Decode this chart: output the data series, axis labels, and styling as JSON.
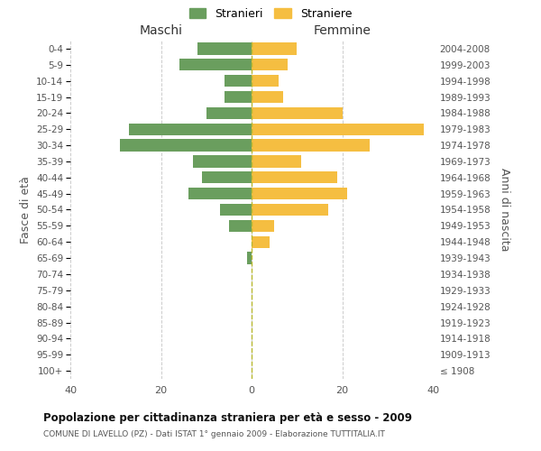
{
  "age_groups": [
    "100+",
    "95-99",
    "90-94",
    "85-89",
    "80-84",
    "75-79",
    "70-74",
    "65-69",
    "60-64",
    "55-59",
    "50-54",
    "45-49",
    "40-44",
    "35-39",
    "30-34",
    "25-29",
    "20-24",
    "15-19",
    "10-14",
    "5-9",
    "0-4"
  ],
  "birth_years": [
    "≤ 1908",
    "1909-1913",
    "1914-1918",
    "1919-1923",
    "1924-1928",
    "1929-1933",
    "1934-1938",
    "1939-1943",
    "1944-1948",
    "1949-1953",
    "1954-1958",
    "1959-1963",
    "1964-1968",
    "1969-1973",
    "1974-1978",
    "1979-1983",
    "1984-1988",
    "1989-1993",
    "1994-1998",
    "1999-2003",
    "2004-2008"
  ],
  "males": [
    0,
    0,
    0,
    0,
    0,
    0,
    0,
    1,
    0,
    5,
    7,
    14,
    11,
    13,
    29,
    27,
    10,
    6,
    6,
    16,
    12
  ],
  "females": [
    0,
    0,
    0,
    0,
    0,
    0,
    0,
    0,
    4,
    5,
    17,
    21,
    19,
    11,
    26,
    38,
    20,
    7,
    6,
    8,
    10
  ],
  "male_color": "#6a9e5e",
  "female_color": "#f5be41",
  "center_line_color": "#b8b830",
  "grid_color": "#cccccc",
  "bg_color": "#ffffff",
  "title": "Popolazione per cittadinanza straniera per età e sesso - 2009",
  "subtitle": "COMUNE DI LAVELLO (PZ) - Dati ISTAT 1° gennaio 2009 - Elaborazione TUTTITALIA.IT",
  "xlabel_left": "Maschi",
  "xlabel_right": "Femmine",
  "ylabel_left": "Fasce di età",
  "ylabel_right": "Anni di nascita",
  "legend_stranieri": "Stranieri",
  "legend_straniere": "Straniere",
  "xlim": 40,
  "bar_height": 0.75
}
